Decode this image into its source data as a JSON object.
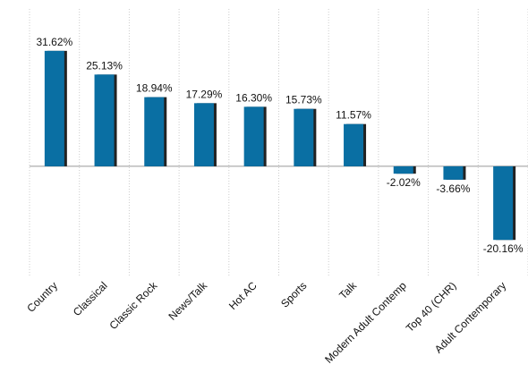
{
  "chart_data": {
    "type": "bar",
    "categories": [
      "Country",
      "Classical",
      "Classic Rock",
      "News/Talk",
      "Hot AC",
      "Sports",
      "Talk",
      "Modern Adult Contemp",
      "Top 40 (CHR)",
      "Adult Contemporary"
    ],
    "values": [
      31.62,
      25.13,
      18.94,
      17.29,
      16.3,
      15.73,
      11.57,
      -2.02,
      -3.66,
      -20.16
    ],
    "value_labels": [
      "31.62%",
      "25.13%",
      "18.94%",
      "17.29%",
      "16.30%",
      "15.73%",
      "11.57%",
      "-2.02%",
      "-3.66%",
      "-20.16%"
    ],
    "color": "#0a6fa3",
    "ylim": [
      -30.4,
      43.1
    ]
  }
}
